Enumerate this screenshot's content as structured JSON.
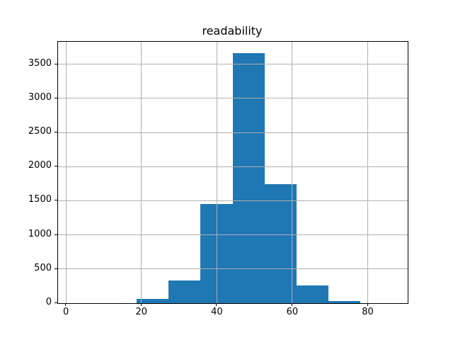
{
  "figure": {
    "background": "#ffffff",
    "axes_edge_color": "#000000",
    "tick_color": "#000000"
  },
  "chart_data": {
    "type": "bar",
    "subtype": "histogram",
    "title": "readability",
    "xlabel": "",
    "ylabel": "",
    "bin_edges": [
      18.8,
      27.26,
      35.71,
      44.17,
      52.63,
      61.09,
      69.54,
      78.0
    ],
    "counts": [
      60,
      330,
      1455,
      3660,
      1740,
      262,
      28
    ],
    "xlim": [
      -2.1,
      90.6
    ],
    "ylim": [
      0,
      3830
    ],
    "x_ticks": [
      0,
      20,
      40,
      60,
      80
    ],
    "y_ticks": [
      0,
      500,
      1000,
      1500,
      2000,
      2500,
      3000,
      3500
    ],
    "grid": true,
    "grid_over_bars": true,
    "legend": null,
    "bar_color": "#1f77b4",
    "grid_color": "#b0b0b0"
  }
}
